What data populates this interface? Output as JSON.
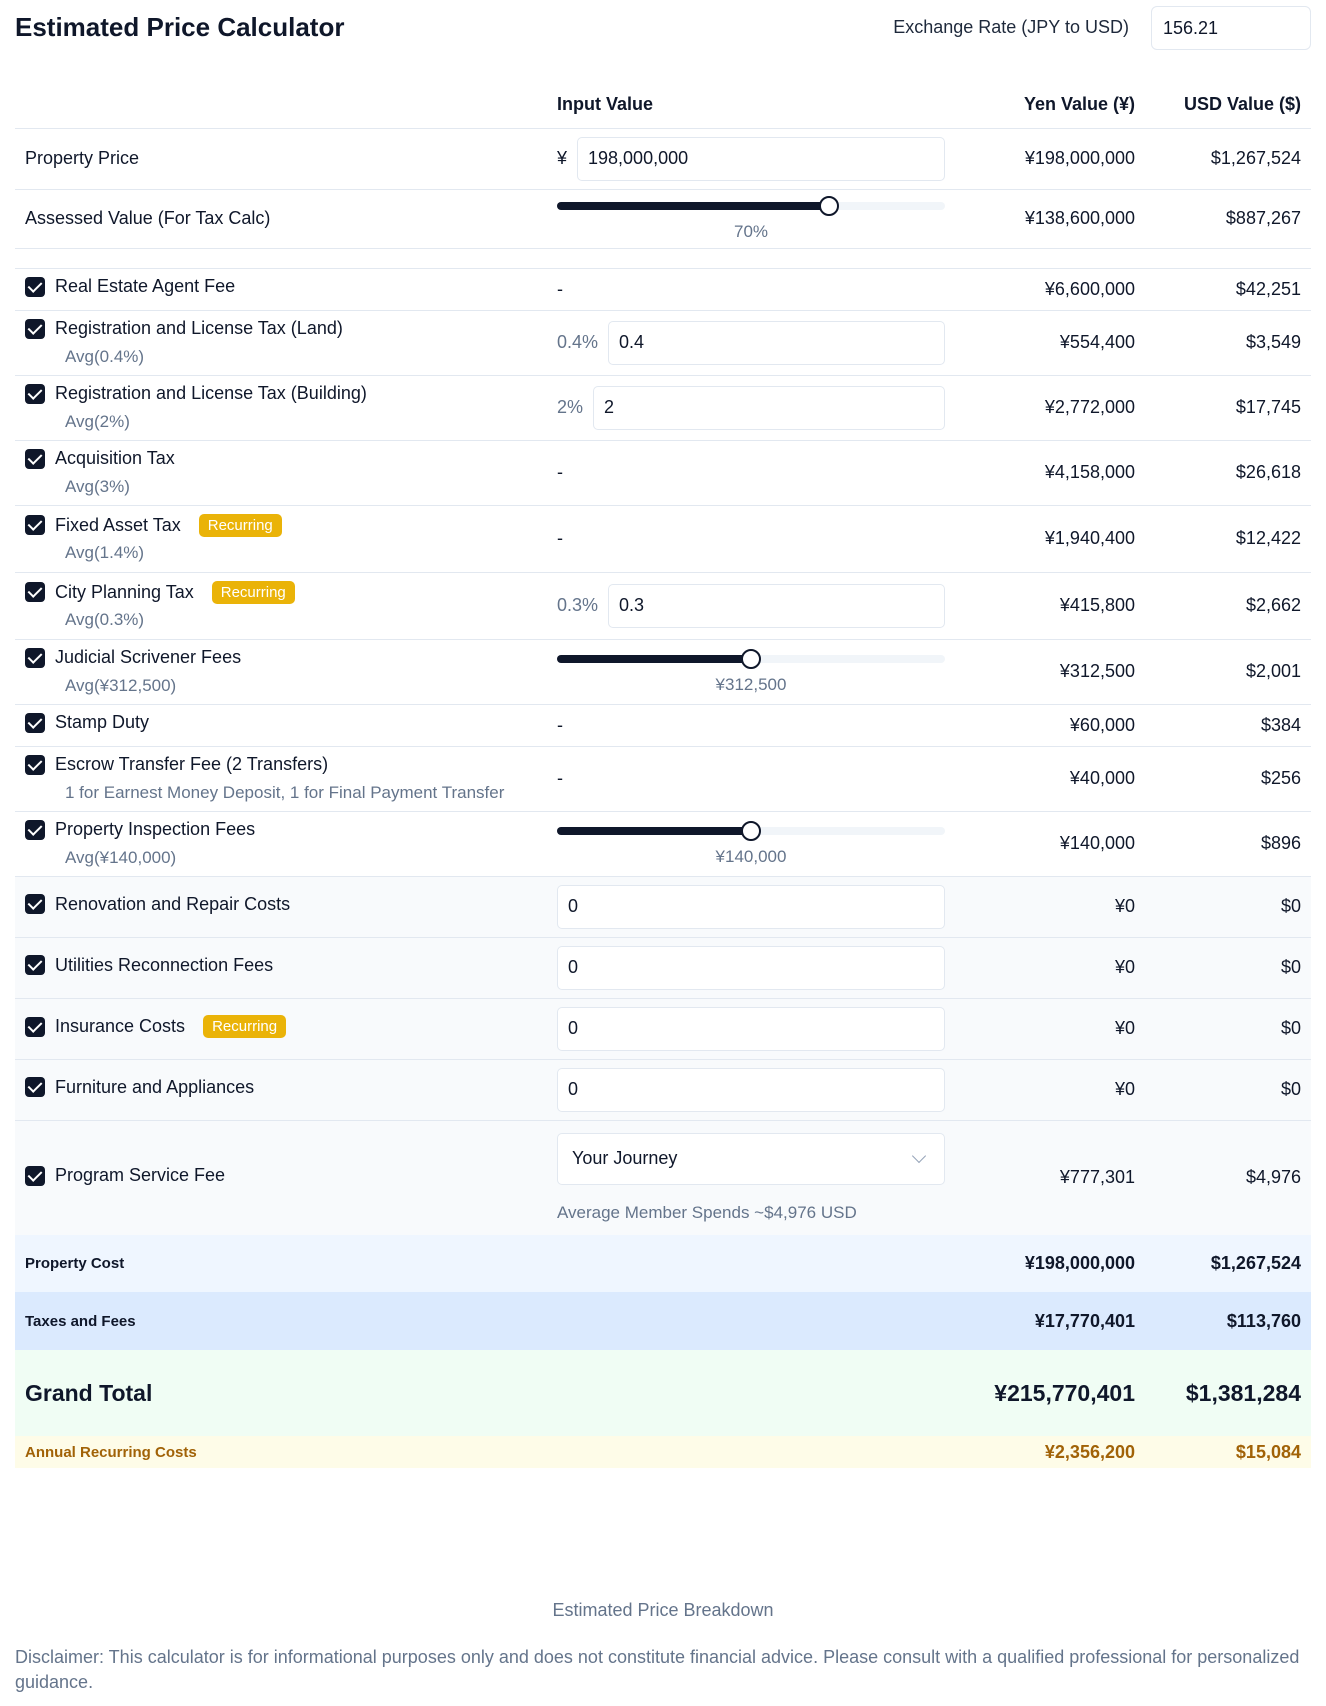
{
  "header": {
    "title": "Estimated Price Calculator",
    "rate_label": "Exchange Rate (JPY to USD)",
    "rate_value": "156.21"
  },
  "columns": {
    "input": "Input Value",
    "yen": "Yen Value (¥)",
    "usd": "USD Value ($)"
  },
  "property_price": {
    "label": "Property Price",
    "prefix": "¥",
    "value": "198,000,000",
    "yen": "¥198,000,000",
    "usd": "$1,267,524"
  },
  "assessed": {
    "label": "Assessed Value (For Tax Calc)",
    "slider_level": 0.7,
    "slider_label": "70%",
    "yen": "¥138,600,000",
    "usd": "$887,267"
  },
  "items": {
    "agent": {
      "label": "Real Estate Agent Fee",
      "input": "-",
      "yen": "¥6,600,000",
      "usd": "$42,251"
    },
    "reg_land": {
      "label": "Registration and License Tax (Land)",
      "sub": "Avg(0.4%)",
      "pct": "0.4%",
      "value": "0.4",
      "yen": "¥554,400",
      "usd": "$3,549"
    },
    "reg_building": {
      "label": "Registration and License Tax (Building)",
      "sub": "Avg(2%)",
      "pct": "2%",
      "value": "2",
      "yen": "¥2,772,000",
      "usd": "$17,745"
    },
    "acquisition": {
      "label": "Acquisition Tax",
      "sub": "Avg(3%)",
      "input": "-",
      "yen": "¥4,158,000",
      "usd": "$26,618"
    },
    "fixed_asset": {
      "label": "Fixed Asset Tax",
      "badge": "Recurring",
      "sub": "Avg(1.4%)",
      "input": "-",
      "yen": "¥1,940,400",
      "usd": "$12,422"
    },
    "city_planning": {
      "label": "City Planning Tax",
      "badge": "Recurring",
      "sub": "Avg(0.3%)",
      "pct": "0.3%",
      "value": "0.3",
      "yen": "¥415,800",
      "usd": "$2,662"
    },
    "scrivener": {
      "label": "Judicial Scrivener Fees",
      "sub": "Avg(¥312,500)",
      "slider_level": 0.5,
      "slider_label": "¥312,500",
      "yen": "¥312,500",
      "usd": "$2,001"
    },
    "stamp": {
      "label": "Stamp Duty",
      "input": "-",
      "yen": "¥60,000",
      "usd": "$384"
    },
    "escrow": {
      "label": "Escrow Transfer Fee (2 Transfers)",
      "sub": "1 for Earnest Money Deposit, 1 for Final Payment Transfer",
      "input": "-",
      "yen": "¥40,000",
      "usd": "$256"
    },
    "inspection": {
      "label": "Property Inspection Fees",
      "sub": "Avg(¥140,000)",
      "slider_level": 0.5,
      "slider_label": "¥140,000",
      "yen": "¥140,000",
      "usd": "$896"
    },
    "renovation": {
      "label": "Renovation and Repair Costs",
      "value": "0",
      "yen": "¥0",
      "usd": "$0"
    },
    "utilities": {
      "label": "Utilities Reconnection Fees",
      "value": "0",
      "yen": "¥0",
      "usd": "$0"
    },
    "insurance": {
      "label": "Insurance Costs",
      "badge": "Recurring",
      "value": "0",
      "yen": "¥0",
      "usd": "$0"
    },
    "furniture": {
      "label": "Furniture and Appliances",
      "value": "0",
      "yen": "¥0",
      "usd": "$0"
    },
    "program": {
      "label": "Program Service Fee",
      "select_value": "Your Journey",
      "hint": "Average Member Spends ~$4,976 USD",
      "yen": "¥777,301",
      "usd": "$4,976"
    }
  },
  "summary": {
    "property_cost": {
      "label": "Property Cost",
      "yen": "¥198,000,000",
      "usd": "$1,267,524"
    },
    "taxes_fees": {
      "label": "Taxes and Fees",
      "yen": "¥17,770,401",
      "usd": "$113,760"
    },
    "grand_total": {
      "label": "Grand Total",
      "yen": "¥215,770,401",
      "usd": "$1,381,284"
    },
    "annual": {
      "label": "Annual Recurring Costs",
      "yen": "¥2,356,200",
      "usd": "$15,084"
    }
  },
  "caption": "Estimated Price Breakdown",
  "disclaimer": "Disclaimer: This calculator is for informational purposes only and does not constitute financial advice. Please consult with a qualified professional for personalized guidance.",
  "colors": {
    "badge": "#eab308",
    "accent": "#0f172a",
    "property_row": "#eff6ff",
    "taxes_row": "#dbeafe",
    "grand_row": "#f0fdf4",
    "annual_row": "#fefce8"
  }
}
